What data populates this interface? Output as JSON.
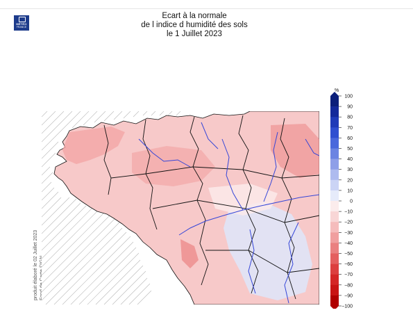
{
  "logo": {
    "line1": "MÉTÉO",
    "line2": "FRANCE"
  },
  "title": {
    "line1": "Ecart à la normale",
    "line2": "de l indice d humidité des sols",
    "line3": "le 1 Juillet 2023"
  },
  "side_text": {
    "line1": "produit élaboré le 02 Juillet 2023",
    "line2": "Fond de Carte ©IGN"
  },
  "legend": {
    "unit": "%",
    "ticks": [
      "100",
      "90",
      "80",
      "70",
      "60",
      "50",
      "40",
      "30",
      "20",
      "10",
      "0",
      "−10",
      "−20",
      "−30",
      "−40",
      "−50",
      "−60",
      "−70",
      "−80",
      "−90",
      "−100"
    ],
    "colors": [
      "#0b1f7a",
      "#13299a",
      "#1f3bb8",
      "#2f4fd0",
      "#4a68dc",
      "#6b84e2",
      "#8e9fe8",
      "#aebbef",
      "#cbd4f5",
      "#e6ebfa",
      "#fbecec",
      "#f8d6d6",
      "#f5bcbc",
      "#f09f9f",
      "#ea8080",
      "#e45f5f",
      "#dc3f3f",
      "#d42626",
      "#c81414",
      "#b00000"
    ]
  },
  "map_colors": {
    "land": "#f7c9c9",
    "dry_zone": "#f2a6a6",
    "very_dry": "#ec8c8c",
    "neutral": "#fbeaea",
    "wet_zone": "#dfe4f7",
    "river": "#3546d8",
    "border": "#111111"
  }
}
